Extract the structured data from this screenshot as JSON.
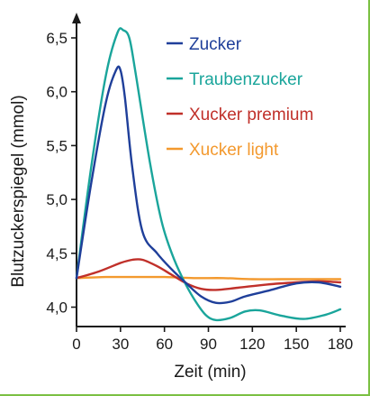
{
  "chart_data": {
    "type": "line",
    "title": "",
    "xlabel": "Zeit (min)",
    "ylabel": "Blutzuckerspiegel (mmol)",
    "xlim": [
      0,
      180
    ],
    "ylim": [
      3.9,
      6.6
    ],
    "x_ticks": [
      0,
      30,
      60,
      90,
      120,
      150,
      180
    ],
    "x_tick_labels": [
      "0",
      "30",
      "60",
      "90",
      "120",
      "150",
      "180"
    ],
    "y_ticks": [
      4.0,
      4.5,
      5.0,
      5.5,
      6.0,
      6.5
    ],
    "y_tick_labels": [
      "4,0",
      "4,5",
      "5,0",
      "5,5",
      "6,0",
      "6,5"
    ],
    "grid": false,
    "legend_position": "top-right",
    "series": [
      {
        "name": "Zucker",
        "color": "#1f3f9a",
        "x": [
          0,
          10,
          20,
          27,
          30,
          33,
          38,
          45,
          55,
          65,
          75,
          85,
          95,
          105,
          115,
          130,
          150,
          165,
          180
        ],
        "y": [
          4.27,
          5.15,
          5.9,
          6.2,
          6.2,
          5.95,
          5.3,
          4.7,
          4.5,
          4.35,
          4.22,
          4.1,
          4.04,
          4.05,
          4.1,
          4.15,
          4.22,
          4.23,
          4.19
        ]
      },
      {
        "name": "Traubenzucker",
        "color": "#1aa59b",
        "x": [
          0,
          10,
          20,
          28,
          32,
          36,
          40,
          50,
          58,
          65,
          72,
          80,
          88,
          95,
          105,
          115,
          125,
          140,
          155,
          170,
          180
        ],
        "y": [
          4.27,
          5.3,
          6.15,
          6.55,
          6.57,
          6.5,
          6.2,
          5.35,
          4.8,
          4.5,
          4.28,
          4.08,
          3.93,
          3.88,
          3.9,
          3.96,
          3.97,
          3.92,
          3.89,
          3.93,
          3.98
        ]
      },
      {
        "name": "Xucker premium",
        "color": "#c0302a",
        "x": [
          0,
          15,
          30,
          38,
          45,
          55,
          65,
          75,
          85,
          95,
          110,
          130,
          150,
          165,
          180
        ],
        "y": [
          4.27,
          4.33,
          4.41,
          4.44,
          4.44,
          4.38,
          4.3,
          4.22,
          4.17,
          4.16,
          4.18,
          4.21,
          4.23,
          4.24,
          4.23
        ]
      },
      {
        "name": "Xucker light",
        "color": "#f3992e",
        "x": [
          0,
          20,
          40,
          60,
          80,
          100,
          120,
          140,
          160,
          180
        ],
        "y": [
          4.27,
          4.28,
          4.28,
          4.28,
          4.27,
          4.27,
          4.26,
          4.26,
          4.26,
          4.26
        ]
      }
    ]
  }
}
